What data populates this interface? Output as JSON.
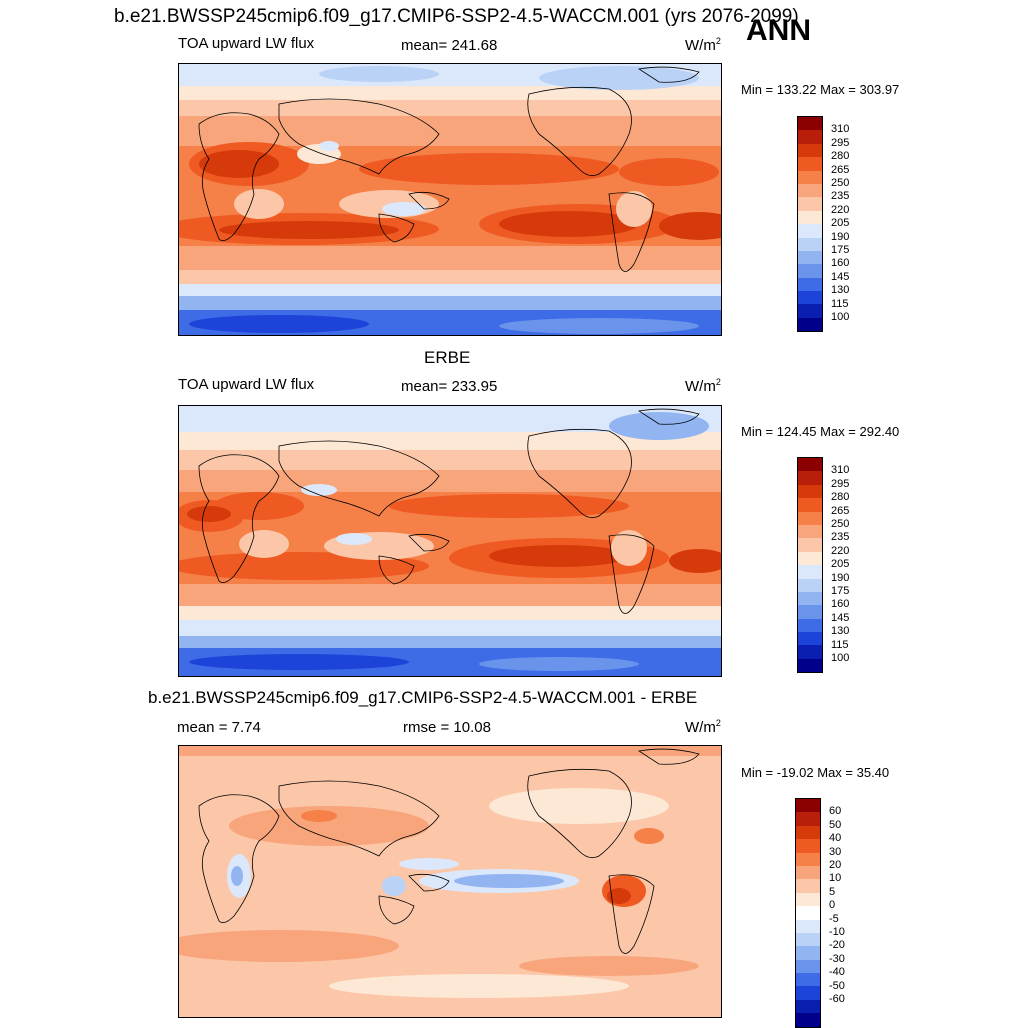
{
  "header": {
    "title": "b.e21.BWSSP245cmip6.f09_g17.CMIP6-SSP2-4.5-WACCM.001 (yrs 2076-2099)",
    "season": "ANN"
  },
  "panels": [
    {
      "title": "",
      "left_label": "TOA upward LW flux",
      "center_label": "mean= 241.68",
      "units": "W/m",
      "units_sup": "2",
      "minmax": "Min = 133.22 Max = 303.97",
      "levels": [
        "310",
        "295",
        "280",
        "265",
        "250",
        "235",
        "220",
        "205",
        "190",
        "175",
        "160",
        "145",
        "130",
        "115",
        "100"
      ],
      "colors": [
        "#8b0000",
        "#b81e0a",
        "#d63a0b",
        "#ee5a22",
        "#f58048",
        "#f8a57c",
        "#fbc7a8",
        "#fde8d6",
        "#dbe8fb",
        "#b9d2f6",
        "#92b5f1",
        "#6a93ec",
        "#3e6be6",
        "#1d43d8",
        "#0a1fb0",
        "#00008b"
      ]
    },
    {
      "title": "ERBE",
      "left_label": "TOA upward LW flux",
      "center_label": "mean= 233.95",
      "units": "W/m",
      "units_sup": "2",
      "minmax": "Min = 124.45 Max = 292.40",
      "levels": [
        "310",
        "295",
        "280",
        "265",
        "250",
        "235",
        "220",
        "205",
        "190",
        "175",
        "160",
        "145",
        "130",
        "115",
        "100"
      ],
      "colors": [
        "#8b0000",
        "#b81e0a",
        "#d63a0b",
        "#ee5a22",
        "#f58048",
        "#f8a57c",
        "#fbc7a8",
        "#fde8d6",
        "#dbe8fb",
        "#b9d2f6",
        "#92b5f1",
        "#6a93ec",
        "#3e6be6",
        "#1d43d8",
        "#0a1fb0",
        "#00008b"
      ]
    },
    {
      "title": "b.e21.BWSSP245cmip6.f09_g17.CMIP6-SSP2-4.5-WACCM.001 - ERBE",
      "left_label": "mean =   7.74",
      "center_label": "rmse =  10.08",
      "units": "W/m",
      "units_sup": "2",
      "minmax": "Min = -19.02 Max =  35.40",
      "levels": [
        "60",
        "50",
        "40",
        "30",
        "20",
        "10",
        "5",
        "0",
        "-5",
        "-10",
        "-20",
        "-30",
        "-40",
        "-50",
        "-60"
      ],
      "colors": [
        "#8b0000",
        "#b81e0a",
        "#d63a0b",
        "#ee5a22",
        "#f58048",
        "#f8a57c",
        "#fbc7a8",
        "#fde8d6",
        "#ffffff",
        "#dbe8fb",
        "#b9d2f6",
        "#92b5f1",
        "#6a93ec",
        "#3e6be6",
        "#1d43d8",
        "#0a1fb0",
        "#00008b"
      ]
    }
  ]
}
